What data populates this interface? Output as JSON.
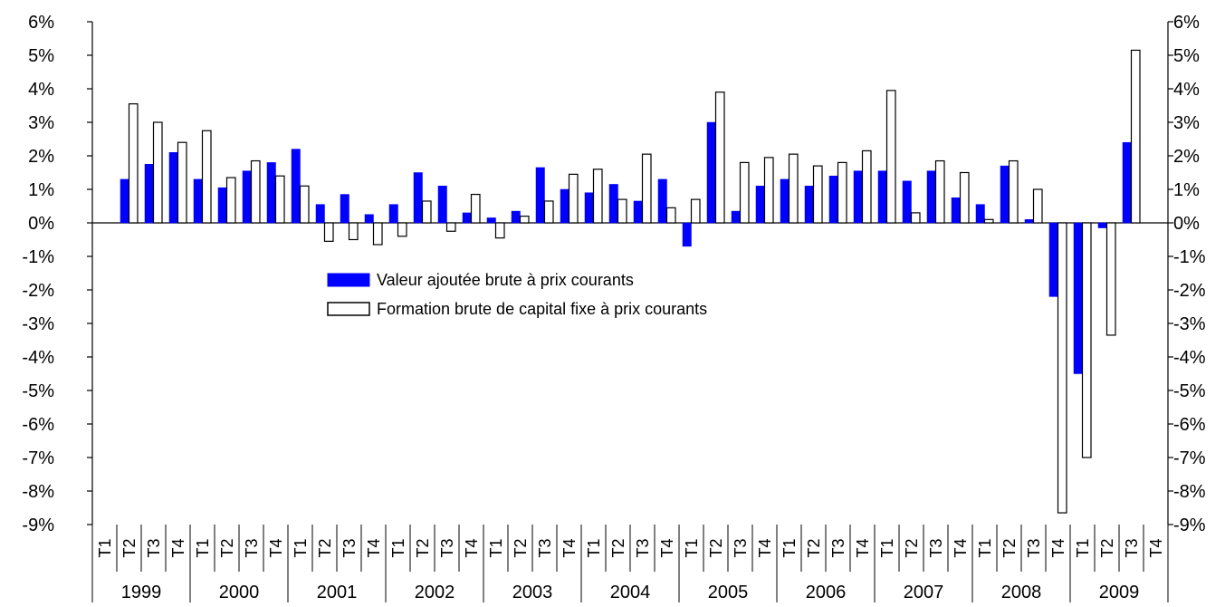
{
  "chart_data": {
    "type": "bar",
    "title": "",
    "xlabel": "",
    "ylabel": "",
    "ylim": [
      -9,
      6
    ],
    "y_ticks": [
      6,
      5,
      4,
      3,
      2,
      1,
      0,
      -1,
      -2,
      -3,
      -4,
      -5,
      -6,
      -7,
      -8,
      -9
    ],
    "y_tick_labels": [
      "6%",
      "5%",
      "4%",
      "3%",
      "2%",
      "1%",
      "0%",
      "-1%",
      "-2%",
      "-3%",
      "-4%",
      "-5%",
      "-6%",
      "-7%",
      "-8%",
      "-9%"
    ],
    "grid": false,
    "legend_position": "center",
    "years": [
      "1999",
      "2000",
      "2001",
      "2002",
      "2003",
      "2004",
      "2005",
      "2006",
      "2007",
      "2008",
      "2009"
    ],
    "quarter_labels": [
      "T1",
      "T2",
      "T3",
      "T4"
    ],
    "categories": [
      "1999 T1",
      "1999 T2",
      "1999 T3",
      "1999 T4",
      "2000 T1",
      "2000 T2",
      "2000 T3",
      "2000 T4",
      "2001 T1",
      "2001 T2",
      "2001 T3",
      "2001 T4",
      "2002 T1",
      "2002 T2",
      "2002 T3",
      "2002 T4",
      "2003 T1",
      "2003 T2",
      "2003 T3",
      "2003 T4",
      "2004 T1",
      "2004 T2",
      "2004 T3",
      "2004 T4",
      "2005 T1",
      "2005 T2",
      "2005 T3",
      "2005 T4",
      "2006 T1",
      "2006 T2",
      "2006 T3",
      "2006 T4",
      "2007 T1",
      "2007 T2",
      "2007 T3",
      "2007 T4",
      "2008 T1",
      "2008 T2",
      "2008 T3",
      "2008 T4",
      "2009 T1",
      "2009 T2",
      "2009 T3",
      "2009 T4"
    ],
    "series": [
      {
        "name": "Valeur ajoutée brute à prix courants",
        "color": "#0000ff",
        "stroke": "#0000ff",
        "values": [
          null,
          1.3,
          1.75,
          2.1,
          1.3,
          1.05,
          1.55,
          1.8,
          2.2,
          0.55,
          0.85,
          0.25,
          0.55,
          1.5,
          1.1,
          0.3,
          0.15,
          0.35,
          1.65,
          1.0,
          0.9,
          1.15,
          0.65,
          1.3,
          -0.7,
          3.0,
          0.35,
          1.1,
          1.3,
          1.1,
          1.4,
          1.55,
          1.55,
          1.25,
          1.55,
          0.75,
          0.55,
          1.7,
          0.1,
          -2.2,
          -4.5,
          -0.15,
          2.4,
          null
        ]
      },
      {
        "name": "Formation brute de capital fixe à prix courants",
        "color": "#ffffff",
        "stroke": "#000000",
        "values": [
          null,
          3.55,
          3.0,
          2.4,
          2.75,
          1.35,
          1.85,
          1.4,
          1.1,
          -0.55,
          -0.5,
          -0.65,
          -0.4,
          0.65,
          -0.25,
          0.85,
          -0.45,
          0.2,
          0.65,
          1.45,
          1.6,
          0.7,
          2.05,
          0.45,
          0.7,
          3.9,
          1.8,
          1.95,
          2.05,
          1.7,
          1.8,
          2.15,
          3.95,
          0.3,
          1.85,
          1.5,
          0.1,
          1.85,
          1.0,
          -8.65,
          -7.0,
          -3.35,
          5.15,
          null
        ]
      }
    ]
  }
}
